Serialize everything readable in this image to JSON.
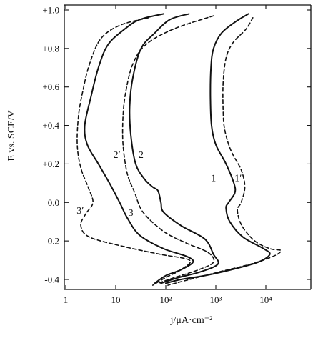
{
  "chart_data": {
    "type": "line",
    "title": "",
    "xlabel": "j/μA·cm⁻²",
    "ylabel": "E vs. SCE/V",
    "x_scale": "log",
    "xlim": [
      1,
      100000
    ],
    "ylim": [
      -0.43,
      1.0
    ],
    "grid": false,
    "x_ticks": [
      {
        "value": 1,
        "label": "1"
      },
      {
        "value": 10,
        "label": "10"
      },
      {
        "value": 100,
        "label": "10²"
      },
      {
        "value": 1000,
        "label": "10³"
      },
      {
        "value": 10000,
        "label": "10⁴"
      }
    ],
    "y_ticks": [
      {
        "value": 1.0,
        "label": "+1.0"
      },
      {
        "value": 0.8,
        "label": "+0.8"
      },
      {
        "value": 0.6,
        "label": "+0.6"
      },
      {
        "value": 0.4,
        "label": "+0.4"
      },
      {
        "value": 0.2,
        "label": "+0.2"
      },
      {
        "value": 0.0,
        "label": "0.0"
      },
      {
        "value": -0.2,
        "label": "-0.2"
      },
      {
        "value": -0.4,
        "label": "-0.4"
      }
    ],
    "series": [
      {
        "name": "1",
        "dash": false,
        "label_at": [
          900,
          0.13
        ],
        "points": [
          [
            4500,
            0.98
          ],
          [
            2500,
            0.94
          ],
          [
            1300,
            0.88
          ],
          [
            900,
            0.8
          ],
          [
            800,
            0.7
          ],
          [
            780,
            0.55
          ],
          [
            820,
            0.4
          ],
          [
            1000,
            0.3
          ],
          [
            1600,
            0.2
          ],
          [
            2300,
            0.1
          ],
          [
            2400,
            0.05
          ],
          [
            1800,
            0.0
          ],
          [
            1600,
            -0.03
          ],
          [
            1900,
            -0.1
          ],
          [
            3500,
            -0.18
          ],
          [
            9000,
            -0.24
          ],
          [
            12000,
            -0.27
          ],
          [
            7000,
            -0.31
          ],
          [
            2000,
            -0.35
          ],
          [
            600,
            -0.38
          ],
          [
            200,
            -0.4
          ],
          [
            100,
            -0.42
          ]
        ]
      },
      {
        "name": "1′",
        "dash": true,
        "label_at": [
          2800,
          0.13
        ],
        "points": [
          [
            5500,
            0.96
          ],
          [
            4000,
            0.9
          ],
          [
            2200,
            0.83
          ],
          [
            1600,
            0.75
          ],
          [
            1400,
            0.62
          ],
          [
            1400,
            0.48
          ],
          [
            1500,
            0.38
          ],
          [
            2000,
            0.27
          ],
          [
            3200,
            0.17
          ],
          [
            3800,
            0.08
          ],
          [
            3200,
            0.0
          ],
          [
            2700,
            -0.04
          ],
          [
            3300,
            -0.12
          ],
          [
            6000,
            -0.2
          ],
          [
            12000,
            -0.24
          ],
          [
            20000,
            -0.25
          ],
          [
            14000,
            -0.28
          ],
          [
            5000,
            -0.32
          ],
          [
            1200,
            -0.36
          ],
          [
            300,
            -0.4
          ],
          [
            110,
            -0.43
          ]
        ]
      },
      {
        "name": "2",
        "dash": false,
        "label_at": [
          32,
          0.25
        ],
        "points": [
          [
            290,
            0.98
          ],
          [
            120,
            0.95
          ],
          [
            60,
            0.88
          ],
          [
            32,
            0.8
          ],
          [
            22,
            0.65
          ],
          [
            19,
            0.5
          ],
          [
            20,
            0.35
          ],
          [
            25,
            0.2
          ],
          [
            38,
            0.12
          ],
          [
            55,
            0.08
          ],
          [
            70,
            0.06
          ],
          [
            80,
            0.0
          ],
          [
            90,
            -0.05
          ],
          [
            200,
            -0.12
          ],
          [
            600,
            -0.19
          ],
          [
            900,
            -0.27
          ],
          [
            1100,
            -0.32
          ],
          [
            500,
            -0.36
          ],
          [
            180,
            -0.39
          ],
          [
            80,
            -0.42
          ]
        ]
      },
      {
        "name": "2′",
        "dash": true,
        "label_at": [
          10.5,
          0.25
        ],
        "points": [
          [
            900,
            0.97
          ],
          [
            140,
            0.9
          ],
          [
            40,
            0.82
          ],
          [
            22,
            0.72
          ],
          [
            16,
            0.58
          ],
          [
            14,
            0.45
          ],
          [
            14,
            0.3
          ],
          [
            17,
            0.15
          ],
          [
            24,
            0.05
          ],
          [
            35,
            -0.05
          ],
          [
            90,
            -0.15
          ],
          [
            250,
            -0.21
          ],
          [
            700,
            -0.26
          ],
          [
            900,
            -0.31
          ],
          [
            450,
            -0.35
          ],
          [
            150,
            -0.39
          ],
          [
            70,
            -0.42
          ]
        ]
      },
      {
        "name": "3",
        "dash": false,
        "label_at": [
          20,
          -0.05
        ],
        "points": [
          [
            90,
            0.98
          ],
          [
            30,
            0.95
          ],
          [
            15,
            0.9
          ],
          [
            7,
            0.82
          ],
          [
            4.5,
            0.7
          ],
          [
            3.2,
            0.55
          ],
          [
            2.4,
            0.4
          ],
          [
            2.7,
            0.3
          ],
          [
            4.5,
            0.2
          ],
          [
            7.5,
            0.1
          ],
          [
            12,
            0.0
          ],
          [
            17,
            -0.08
          ],
          [
            30,
            -0.17
          ],
          [
            90,
            -0.24
          ],
          [
            260,
            -0.28
          ],
          [
            350,
            -0.31
          ],
          [
            200,
            -0.35
          ],
          [
            100,
            -0.38
          ],
          [
            60,
            -0.42
          ]
        ]
      },
      {
        "name": "3′",
        "dash": true,
        "label_at": [
          1.95,
          -0.04
        ],
        "points": [
          [
            45,
            0.96
          ],
          [
            12,
            0.92
          ],
          [
            5,
            0.85
          ],
          [
            3,
            0.72
          ],
          [
            2.2,
            0.58
          ],
          [
            1.8,
            0.45
          ],
          [
            1.7,
            0.3
          ],
          [
            2,
            0.18
          ],
          [
            2.8,
            0.08
          ],
          [
            3.5,
            0.0
          ],
          [
            2.5,
            -0.06
          ],
          [
            2,
            -0.12
          ],
          [
            3,
            -0.18
          ],
          [
            15,
            -0.23
          ],
          [
            80,
            -0.27
          ],
          [
            300,
            -0.3
          ],
          [
            200,
            -0.35
          ],
          [
            100,
            -0.39
          ],
          [
            55,
            -0.43
          ]
        ]
      }
    ]
  }
}
